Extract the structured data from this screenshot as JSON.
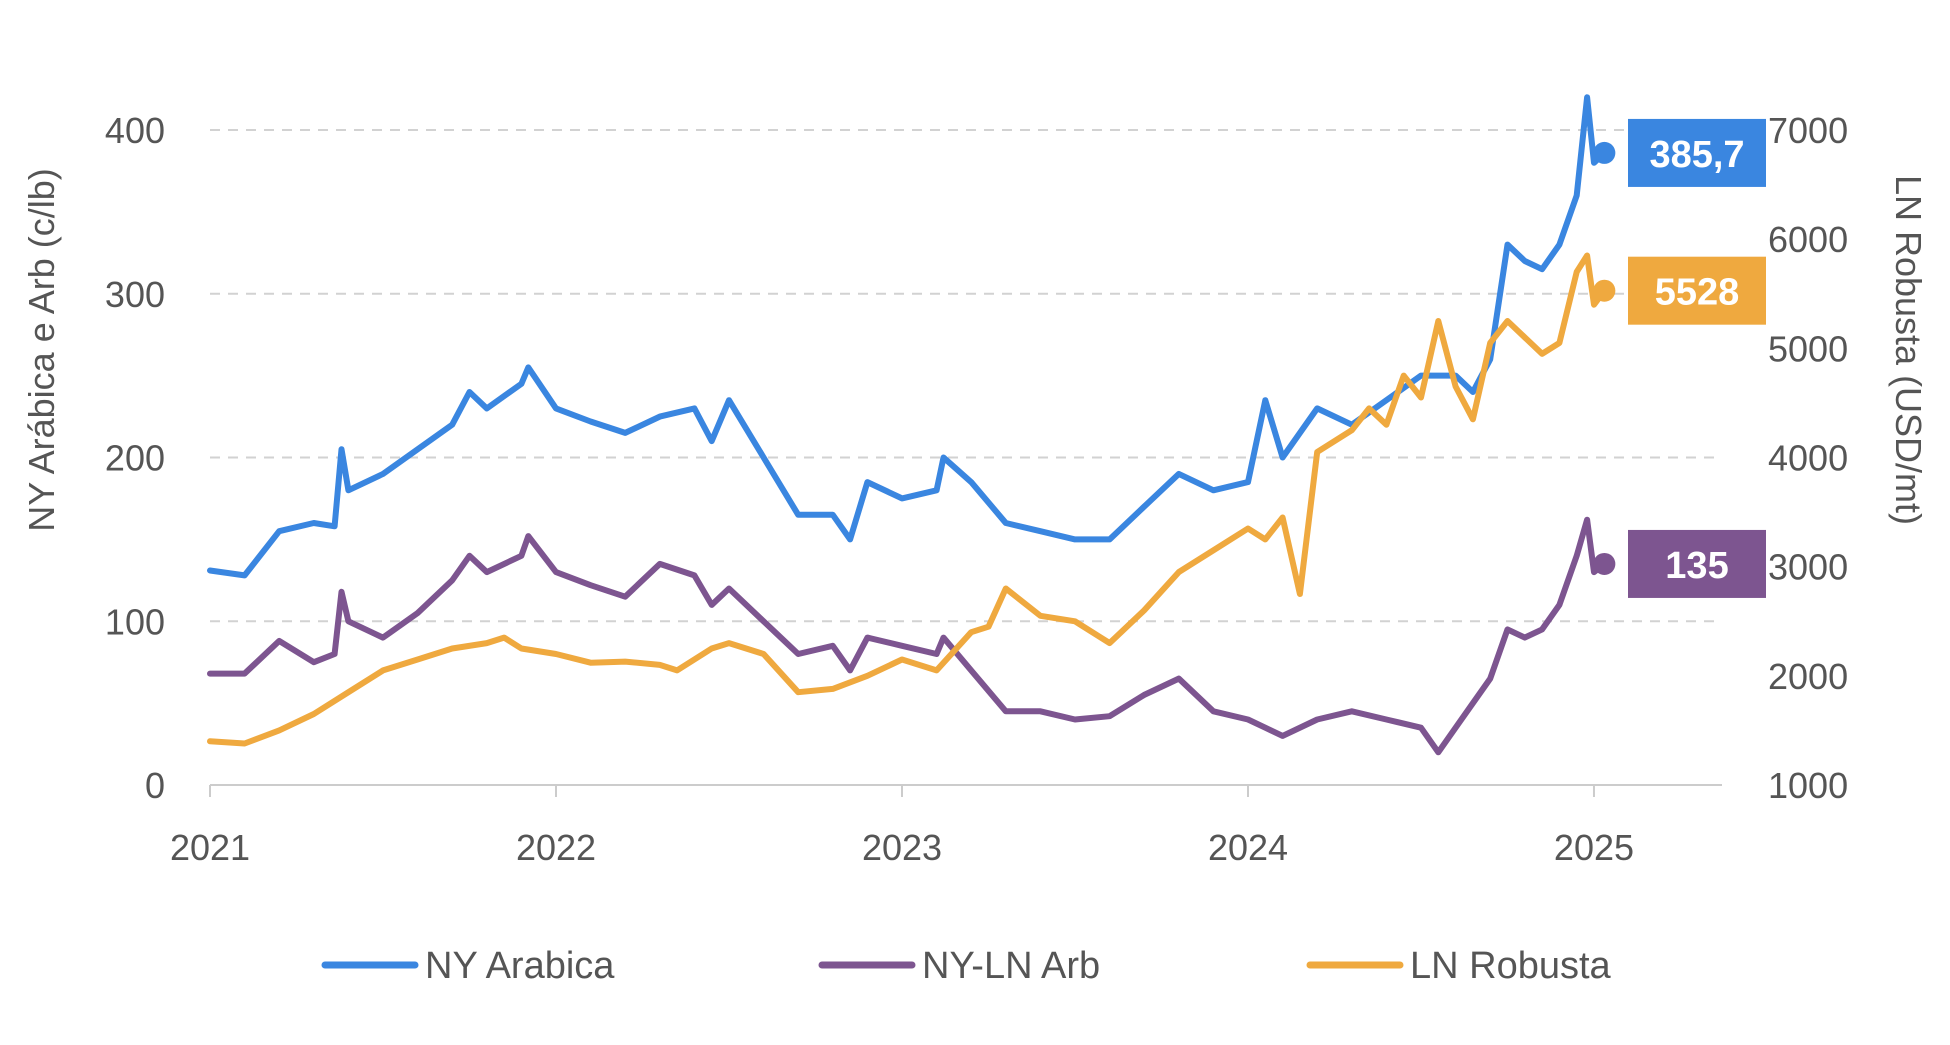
{
  "chart_data": {
    "type": "line",
    "y_left_label": "NY Arábica e Arb (c/lb)",
    "y_right_label": "LN Robusta (USD/mt)",
    "x_ticks": [
      "2021",
      "2022",
      "2023",
      "2024",
      "2025"
    ],
    "x_range": [
      2021.0,
      2025.37
    ],
    "y_left_ticks": [
      "0",
      "100",
      "200",
      "300",
      "400"
    ],
    "y_left_range": [
      0,
      400
    ],
    "y_right_ticks": [
      "1000",
      "2000",
      "3000",
      "4000",
      "5000",
      "6000",
      "7000"
    ],
    "y_right_range": [
      1000,
      7000
    ],
    "grid": "horizontal dashed",
    "legend_position": "bottom",
    "series": [
      {
        "name": "NY Arabica",
        "axis": "left",
        "color": "#3a86e0",
        "end_label": "385,7",
        "x": [
          2021.0,
          2021.1,
          2021.2,
          2021.3,
          2021.36,
          2021.38,
          2021.4,
          2021.5,
          2021.6,
          2021.7,
          2021.75,
          2021.8,
          2021.9,
          2021.92,
          2022.0,
          2022.1,
          2022.2,
          2022.3,
          2022.4,
          2022.45,
          2022.5,
          2022.6,
          2022.7,
          2022.8,
          2022.85,
          2022.9,
          2023.0,
          2023.1,
          2023.12,
          2023.2,
          2023.3,
          2023.4,
          2023.5,
          2023.6,
          2023.7,
          2023.8,
          2023.9,
          2024.0,
          2024.05,
          2024.1,
          2024.2,
          2024.3,
          2024.4,
          2024.5,
          2024.6,
          2024.65,
          2024.7,
          2024.75,
          2024.8,
          2024.85,
          2024.9,
          2024.95,
          2024.98,
          2025.0,
          2025.03
        ],
        "y": [
          131,
          128,
          155,
          160,
          158,
          205,
          180,
          190,
          205,
          220,
          240,
          230,
          245,
          255,
          230,
          222,
          215,
          225,
          230,
          210,
          235,
          200,
          165,
          165,
          150,
          185,
          175,
          180,
          200,
          185,
          160,
          155,
          150,
          150,
          170,
          190,
          180,
          185,
          235,
          200,
          230,
          220,
          235,
          250,
          250,
          240,
          260,
          330,
          320,
          315,
          330,
          360,
          420,
          380,
          386
        ]
      },
      {
        "name": "NY-LN Arb",
        "axis": "left",
        "color": "#7d5590",
        "end_label": "135",
        "x": [
          2021.0,
          2021.1,
          2021.2,
          2021.3,
          2021.36,
          2021.38,
          2021.4,
          2021.5,
          2021.6,
          2021.7,
          2021.75,
          2021.8,
          2021.9,
          2021.92,
          2022.0,
          2022.1,
          2022.2,
          2022.3,
          2022.4,
          2022.45,
          2022.5,
          2022.6,
          2022.7,
          2022.8,
          2022.85,
          2022.9,
          2023.0,
          2023.1,
          2023.12,
          2023.2,
          2023.3,
          2023.4,
          2023.5,
          2023.6,
          2023.7,
          2023.8,
          2023.9,
          2024.0,
          2024.05,
          2024.1,
          2024.2,
          2024.3,
          2024.4,
          2024.5,
          2024.55,
          2024.6,
          2024.65,
          2024.7,
          2024.75,
          2024.8,
          2024.85,
          2024.9,
          2024.95,
          2024.98,
          2025.0,
          2025.03
        ],
        "y": [
          68,
          68,
          88,
          75,
          80,
          118,
          100,
          90,
          105,
          125,
          140,
          130,
          140,
          152,
          130,
          122,
          115,
          135,
          128,
          110,
          120,
          100,
          80,
          85,
          70,
          90,
          85,
          80,
          90,
          70,
          45,
          45,
          40,
          42,
          55,
          65,
          45,
          40,
          35,
          30,
          40,
          45,
          40,
          35,
          20,
          35,
          50,
          65,
          95,
          90,
          95,
          110,
          140,
          162,
          130,
          135
        ]
      },
      {
        "name": "LN Robusta",
        "axis": "right",
        "color": "#efa93f",
        "end_label": "5528",
        "x": [
          2021.0,
          2021.1,
          2021.2,
          2021.3,
          2021.4,
          2021.5,
          2021.6,
          2021.7,
          2021.8,
          2021.85,
          2021.9,
          2022.0,
          2022.1,
          2022.2,
          2022.3,
          2022.35,
          2022.45,
          2022.5,
          2022.6,
          2022.7,
          2022.8,
          2022.9,
          2023.0,
          2023.1,
          2023.2,
          2023.25,
          2023.3,
          2023.4,
          2023.5,
          2023.6,
          2023.7,
          2023.8,
          2023.9,
          2024.0,
          2024.05,
          2024.1,
          2024.15,
          2024.2,
          2024.3,
          2024.35,
          2024.4,
          2024.45,
          2024.5,
          2024.55,
          2024.6,
          2024.65,
          2024.7,
          2024.75,
          2024.8,
          2024.85,
          2024.9,
          2024.95,
          2024.98,
          2025.0,
          2025.03
        ],
        "y": [
          1400,
          1380,
          1500,
          1650,
          1850,
          2050,
          2150,
          2250,
          2300,
          2350,
          2250,
          2200,
          2120,
          2130,
          2100,
          2050,
          2250,
          2300,
          2200,
          1850,
          1880,
          2000,
          2150,
          2050,
          2400,
          2450,
          2800,
          2550,
          2500,
          2300,
          2600,
          2950,
          3150,
          3350,
          3250,
          3450,
          2750,
          4050,
          4250,
          4450,
          4300,
          4750,
          4550,
          5250,
          4650,
          4350,
          5050,
          5250,
          5100,
          4950,
          5050,
          5700,
          5850,
          5400,
          5528
        ]
      }
    ]
  }
}
